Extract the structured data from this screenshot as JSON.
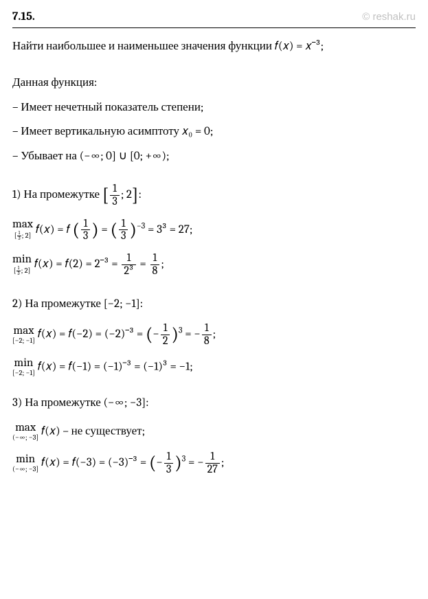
{
  "header": {
    "problem_number": "7.15.",
    "watermark": "© reshak.ru"
  },
  "task": "Найти наибольшее и наименьшее значения функции 𝑓(𝑥) = 𝑥⁻³;",
  "intro": {
    "title": "Данная функция:",
    "bullets": [
      "– Имеет нечетный показатель степени;",
      "– Имеет вертикальную асимптоту 𝑥₀ = 0;",
      "– Убывает на (−∞;  0] ∪ [0;  +∞);"
    ]
  },
  "parts": {
    "p1": {
      "header_prefix": "1) На промежутке ",
      "interval_open": "[",
      "interval_a_num": "1",
      "interval_a_den": "3",
      "interval_sep": ";  2",
      "interval_close": "]",
      "colon": ":",
      "max_label": "max",
      "min_label": "min",
      "range_open": "[",
      "range_a_num": "1",
      "range_a_den": "3",
      "range_sep": "; 2]",
      "max_expr_1": " 𝑓(𝑥) = 𝑓 ",
      "max_expr_paren_num": "1",
      "max_expr_paren_den": "3",
      "max_expr_2": " = ",
      "max_expr_paren2_num": "1",
      "max_expr_paren2_den": "3",
      "max_expr_exp": "−3",
      "max_expr_3": " = 3³ = 27;",
      "min_expr_1": " 𝑓(𝑥) = 𝑓(2) = 2⁻³ = ",
      "min_frac1_num": "1",
      "min_frac1_den": "2³",
      "min_expr_2": " = ",
      "min_frac2_num": "1",
      "min_frac2_den": "8",
      "min_expr_3": ";"
    },
    "p2": {
      "header": "2) На промежутке [−2;  −1]:",
      "max_label": "max",
      "min_label": "min",
      "range": "[−2; −1]",
      "max_expr_1": " 𝑓(𝑥) = 𝑓(−2) = (−2)⁻³ = ",
      "max_paren_prefix": "−",
      "max_paren_num": "1",
      "max_paren_den": "2",
      "max_paren_exp": "3",
      "max_expr_2": " = −",
      "max_frac_num": "1",
      "max_frac_den": "8",
      "max_expr_3": ";",
      "min_expr": " 𝑓(𝑥) = 𝑓(−1) = (−1)⁻³ = (−1)³ = −1;"
    },
    "p3": {
      "header": "3) На промежутке (−∞;  −3]:",
      "max_label": "max",
      "min_label": "min",
      "range": "(−∞; −3]",
      "max_expr": " 𝑓(𝑥) – не существует;",
      "min_expr_1": " 𝑓(𝑥) = 𝑓(−3) = (−3)⁻³ = ",
      "min_paren_prefix": "−",
      "min_paren_num": "1",
      "min_paren_den": "3",
      "min_paren_exp": "3",
      "min_expr_2": " = −",
      "min_frac_num": "1",
      "min_frac_den": "27",
      "min_expr_3": ";"
    }
  }
}
